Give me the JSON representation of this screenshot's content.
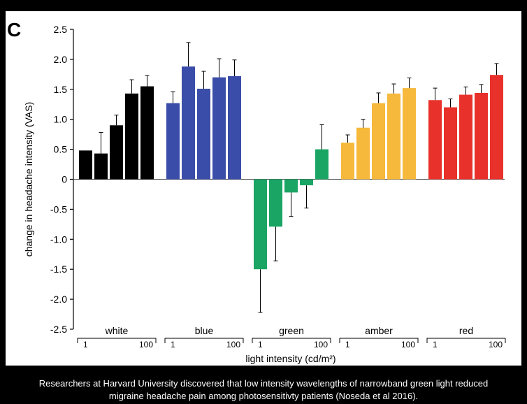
{
  "chart_data": {
    "type": "bar",
    "panel_label": "C",
    "ylabel": "change in headache intensity (VAS)",
    "xlabel": "light intensity (cd/m²)",
    "ylim": [
      -2.5,
      2.5
    ],
    "yticks": [
      2.5,
      2.0,
      1.5,
      1.0,
      0.5,
      0,
      -0.5,
      -1.0,
      -1.5,
      -2.0,
      -2.5
    ],
    "ytick_labels": [
      "2.5",
      "2.0",
      "1.5",
      "1.0",
      "0.5",
      "0",
      "-0.5",
      "-1.0",
      "-1.5",
      "-2.0",
      "-2.5"
    ],
    "intensity_tick_low": "1",
    "intensity_tick_high": "100",
    "groups": [
      {
        "name": "white",
        "color": "#000000",
        "values": [
          0.48,
          0.43,
          0.9,
          1.43,
          1.55
        ],
        "errors": [
          0.0,
          0.35,
          0.17,
          0.23,
          0.18
        ]
      },
      {
        "name": "blue",
        "color": "#3a4da8",
        "values": [
          1.27,
          1.88,
          1.51,
          1.7,
          1.72
        ],
        "errors": [
          0.19,
          0.4,
          0.29,
          0.31,
          0.27
        ]
      },
      {
        "name": "green",
        "color": "#1aa564",
        "values": [
          -1.5,
          -0.79,
          -0.22,
          -0.1,
          0.5
        ],
        "errors": [
          0.72,
          0.57,
          0.4,
          0.38,
          0.41
        ]
      },
      {
        "name": "amber",
        "color": "#f6b93b",
        "values": [
          0.61,
          0.86,
          1.27,
          1.43,
          1.52
        ],
        "errors": [
          0.13,
          0.14,
          0.17,
          0.16,
          0.17
        ]
      },
      {
        "name": "red",
        "color": "#e8312a",
        "values": [
          1.32,
          1.2,
          1.41,
          1.44,
          1.74
        ],
        "errors": [
          0.2,
          0.14,
          0.13,
          0.14,
          0.19
        ]
      }
    ]
  },
  "caption": {
    "line1": "Researchers at Harvard University discovered that low intensity wavelengths of narrowband green light reduced",
    "line2": "migraine headache pain among photosensitivty patients (Noseda et al 2016)."
  }
}
